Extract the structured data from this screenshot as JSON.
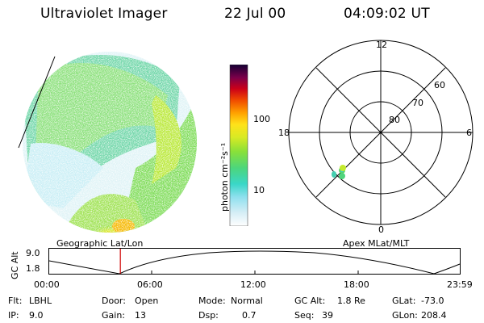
{
  "header": {
    "title": "Ultraviolet Imager",
    "date": "22 Jul 00",
    "time": "04:09:02 UT"
  },
  "colorbar": {
    "unit_label": "photon cm⁻²s⁻¹",
    "tick_100": "100",
    "tick_10": "10"
  },
  "polar": {
    "top": "12",
    "bottom": "0",
    "left": "18",
    "right": "6",
    "ring_60": "60",
    "ring_70": "70",
    "ring_80": "80"
  },
  "labels": {
    "geo": "Geographic Lat/Lon",
    "apex": "Apex MLat/MLT"
  },
  "altplot": {
    "ylabel": "GC Alt",
    "y_top": "9.0",
    "y_bottom": "1.8",
    "x_ticks": [
      "00:00",
      "06:00",
      "12:00",
      "18:00",
      "23:59"
    ],
    "marker_time_hours": 4.15
  },
  "info": {
    "flt_label": "Flt:",
    "flt_value": "LBHL",
    "ip_label": "IP:",
    "ip_value": "9.0",
    "door_label": "Door:",
    "door_value": "Open",
    "gain_label": "Gain:",
    "gain_value": "13",
    "mode_label": "Mode:",
    "mode_value": "Normal",
    "dsp_label": "Dsp:",
    "dsp_value": "0.7",
    "gcalt_label": "GC Alt:",
    "gcalt_value": "1.8 Re",
    "seq_label": "Seq:",
    "seq_value": "39",
    "glat_label": "GLat:",
    "glat_value": "-73.0",
    "glon_label": "GLon:",
    "glon_value": "208.4"
  }
}
